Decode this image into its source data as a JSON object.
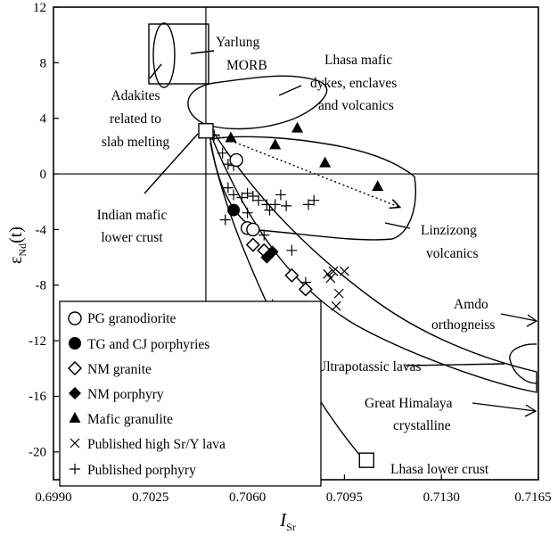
{
  "chart_data": {
    "type": "scatter",
    "title": "",
    "xlabel": {
      "main": "I",
      "sub": "Sr"
    },
    "ylabel": {
      "main": "ε",
      "sub": "Nd",
      "suffix": "(t)"
    },
    "xlim": [
      0.699,
      0.7165
    ],
    "ylim": [
      -22,
      12
    ],
    "x_ticks": [
      "0.6990",
      "0.7025",
      "0.7060",
      "0.7095",
      "0.7130",
      "0.7165"
    ],
    "y_ticks": [
      "12",
      "8",
      "4",
      "0",
      "-4",
      "-8",
      "-12",
      "-16",
      "-20"
    ],
    "reference_lines": {
      "x": 0.7045,
      "y": 0
    },
    "legend_position": "bottom-left",
    "series": [
      {
        "name": "PG granodiorite",
        "marker": "open-circle",
        "points": [
          [
            0.7056,
            1.0
          ],
          [
            0.706,
            -3.9
          ],
          [
            0.7062,
            -4.0
          ]
        ]
      },
      {
        "name": "TG and CJ porphyries",
        "marker": "filled-circle",
        "points": [
          [
            0.7055,
            -2.6
          ]
        ]
      },
      {
        "name": "NM granite",
        "marker": "open-diamond",
        "points": [
          [
            0.7062,
            -5.1
          ],
          [
            0.7066,
            -5.5
          ],
          [
            0.7076,
            -7.3
          ],
          [
            0.7081,
            -8.3
          ]
        ]
      },
      {
        "name": "NM porphyry",
        "marker": "filled-diamond",
        "points": [
          [
            0.7067,
            -6.0
          ],
          [
            0.7069,
            -5.6
          ]
        ]
      },
      {
        "name": "Mafic granulite",
        "marker": "filled-triangle",
        "points": [
          [
            0.7054,
            2.6
          ],
          [
            0.707,
            2.1
          ],
          [
            0.7078,
            3.3
          ],
          [
            0.7088,
            0.8
          ],
          [
            0.7107,
            -0.9
          ]
        ]
      },
      {
        "name": "Published high Sr/Y lava",
        "marker": "x",
        "points": [
          [
            0.7089,
            -7.2
          ],
          [
            0.709,
            -7.5
          ],
          [
            0.7091,
            -7.0
          ],
          [
            0.7093,
            -8.6
          ],
          [
            0.7095,
            -7.0
          ],
          [
            0.7092,
            -9.5
          ]
        ]
      },
      {
        "name": "Published porphyry",
        "marker": "plus",
        "points": [
          [
            0.7048,
            2.8
          ],
          [
            0.7051,
            1.5
          ],
          [
            0.7053,
            0.7
          ],
          [
            0.7055,
            0.6
          ],
          [
            0.7053,
            -1.0
          ],
          [
            0.7055,
            -1.5
          ],
          [
            0.7058,
            -1.7
          ],
          [
            0.706,
            -1.4
          ],
          [
            0.7062,
            -1.6
          ],
          [
            0.7064,
            -1.9
          ],
          [
            0.7067,
            -2.2
          ],
          [
            0.7068,
            -2.6
          ],
          [
            0.707,
            -2.2
          ],
          [
            0.7072,
            -1.5
          ],
          [
            0.7074,
            -2.3
          ],
          [
            0.7082,
            -2.2
          ],
          [
            0.7084,
            -1.9
          ],
          [
            0.706,
            -2.8
          ],
          [
            0.7052,
            -3.3
          ],
          [
            0.7076,
            -5.5
          ],
          [
            0.7066,
            -4.4
          ],
          [
            0.7081,
            -7.8
          ],
          [
            0.7069,
            -9.4
          ]
        ]
      }
    ],
    "special_points": [
      {
        "label": "Indian mafic lower crust",
        "marker": "open-square",
        "x": 0.7045,
        "y": 3.1
      },
      {
        "label": "Lhasa lower crust",
        "marker": "open-square",
        "x": 0.7103,
        "y": -20.6
      }
    ],
    "mixing_lines": [
      {
        "from": [
          0.7045,
          3.1
        ],
        "to": [
          0.7115,
          -2.4
        ]
      }
    ],
    "field_labels": {
      "yarlung": [
        "Yarlung",
        "MORB"
      ],
      "adakites": [
        "Adakites",
        "related to",
        "slab melting"
      ],
      "lhasa_mafic": [
        "Lhasa mafic",
        "dykes, enclaves",
        "and volcanics"
      ],
      "indian": [
        "Indian mafic",
        "lower crust"
      ],
      "linzizong": [
        "Linzizong",
        "volcanics"
      ],
      "amdo": [
        "Amdo",
        "orthogneiss"
      ],
      "ultrapotassic": [
        "Ultrapotassic lavas"
      ],
      "himalaya": [
        "Great Himalaya",
        "crystalline"
      ],
      "lhasa_lower": [
        "Lhasa lower crust"
      ]
    }
  }
}
